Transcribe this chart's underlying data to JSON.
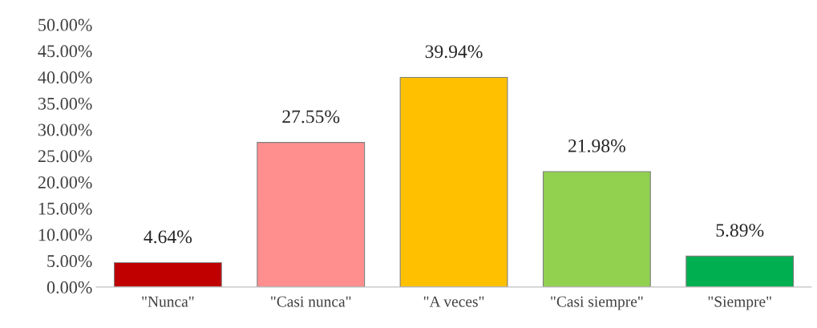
{
  "chart_data": {
    "type": "bar",
    "categories": [
      "\"Nunca\"",
      "\"Casi nunca\"",
      "\"A veces\"",
      "\"Casi siempre\"",
      "\"Siempre\""
    ],
    "values": [
      4.64,
      27.55,
      39.94,
      21.98,
      5.89
    ],
    "colors": [
      "#c00000",
      "#ff8f8f",
      "#ffc000",
      "#92d050",
      "#00b050"
    ],
    "value_labels": [
      "4.64%",
      "27.55%",
      "39.94%",
      "21.98%",
      "5.89%"
    ],
    "ylim": [
      0,
      50
    ],
    "yticks": [
      {
        "value": 0,
        "label": "0.00%"
      },
      {
        "value": 5,
        "label": "5.00%"
      },
      {
        "value": 10,
        "label": "10.00%"
      },
      {
        "value": 15,
        "label": "15.00%"
      },
      {
        "value": 20,
        "label": "20.00%"
      },
      {
        "value": 25,
        "label": "25.00%"
      },
      {
        "value": 30,
        "label": "30.00%"
      },
      {
        "value": 35,
        "label": "35.00%"
      },
      {
        "value": 40,
        "label": "40.00%"
      },
      {
        "value": 45,
        "label": "45.00%"
      },
      {
        "value": 50,
        "label": "50.00%"
      }
    ],
    "grid": false
  }
}
